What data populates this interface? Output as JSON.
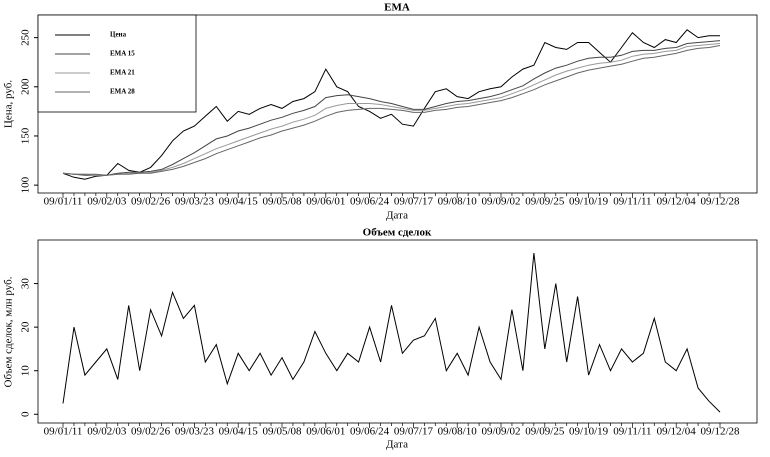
{
  "chart_data": [
    {
      "type": "line",
      "title": "EMA",
      "xlabel": "Дата",
      "ylabel": "Цена, руб.",
      "categories": [
        "09/01/11",
        null,
        null,
        null,
        "09/02/03",
        null,
        null,
        null,
        "09/02/26",
        null,
        null,
        null,
        "09/03/23",
        null,
        null,
        null,
        "09/04/15",
        null,
        null,
        null,
        "09/05/08",
        null,
        null,
        null,
        "09/06/01",
        null,
        null,
        null,
        "09/06/24",
        null,
        null,
        null,
        "09/07/17",
        null,
        null,
        null,
        "09/08/10",
        null,
        null,
        null,
        "09/09/02",
        null,
        null,
        null,
        "09/09/25",
        null,
        null,
        null,
        "09/10/19",
        null,
        null,
        null,
        "09/11/11",
        null,
        null,
        null,
        "09/12/04",
        null,
        null,
        null,
        "09/12/28"
      ],
      "ylim": [
        92,
        273
      ],
      "yticks": [
        100,
        150,
        200,
        250
      ],
      "legend": "upper left",
      "series": [
        {
          "name": "Цена",
          "color": "#000000",
          "values": [
            112,
            108,
            106,
            109,
            110,
            122,
            115,
            113,
            118,
            130,
            145,
            155,
            160,
            170,
            180,
            165,
            175,
            172,
            178,
            182,
            178,
            185,
            188,
            195,
            218,
            200,
            195,
            180,
            175,
            168,
            172,
            162,
            160,
            178,
            195,
            198,
            190,
            188,
            195,
            198,
            200,
            210,
            218,
            222,
            245,
            240,
            238,
            245,
            245,
            235,
            225,
            240,
            255,
            245,
            240,
            248,
            245,
            258,
            250,
            252,
            252
          ]
        },
        {
          "name": "EMA 15",
          "color": "#444444",
          "values": [
            112,
            111,
            110,
            110,
            110,
            112,
            113,
            113,
            114,
            116,
            121,
            127,
            133,
            140,
            147,
            150,
            155,
            158,
            162,
            166,
            169,
            173,
            176,
            180,
            189,
            191,
            192,
            190,
            188,
            185,
            183,
            180,
            177,
            177,
            180,
            183,
            185,
            186,
            188,
            190,
            193,
            197,
            201,
            208,
            214,
            219,
            222,
            226,
            229,
            230,
            230,
            232,
            236,
            237,
            237,
            239,
            240,
            244,
            245,
            246,
            247
          ]
        },
        {
          "name": "EMA 21",
          "color": "#999999",
          "values": [
            112,
            111,
            111,
            110,
            110,
            111,
            112,
            112,
            113,
            115,
            118,
            122,
            127,
            132,
            137,
            141,
            145,
            149,
            153,
            157,
            160,
            164,
            167,
            171,
            178,
            181,
            183,
            183,
            183,
            182,
            180,
            178,
            176,
            176,
            178,
            180,
            182,
            183,
            185,
            187,
            189,
            193,
            197,
            202,
            207,
            212,
            216,
            219,
            222,
            224,
            225,
            227,
            231,
            233,
            234,
            236,
            237,
            241,
            242,
            243,
            244
          ]
        },
        {
          "name": "EMA 28",
          "color": "#666666",
          "values": [
            112,
            111,
            111,
            111,
            110,
            111,
            111,
            112,
            112,
            114,
            116,
            119,
            123,
            127,
            132,
            136,
            140,
            144,
            148,
            151,
            155,
            158,
            161,
            165,
            170,
            174,
            176,
            177,
            178,
            178,
            177,
            176,
            174,
            174,
            176,
            177,
            179,
            180,
            182,
            184,
            186,
            189,
            193,
            197,
            202,
            206,
            210,
            214,
            217,
            219,
            221,
            223,
            226,
            229,
            230,
            232,
            234,
            237,
            239,
            240,
            242
          ]
        }
      ]
    },
    {
      "type": "line",
      "title": "Объем сделок",
      "xlabel": "Дата",
      "ylabel": "Объем сделок, млн руб.",
      "categories": [
        "09/01/11",
        null,
        null,
        null,
        "09/02/03",
        null,
        null,
        null,
        "09/02/26",
        null,
        null,
        null,
        "09/03/23",
        null,
        null,
        null,
        "09/04/15",
        null,
        null,
        null,
        "09/05/08",
        null,
        null,
        null,
        "09/06/01",
        null,
        null,
        null,
        "09/06/24",
        null,
        null,
        null,
        "09/07/17",
        null,
        null,
        null,
        "09/08/10",
        null,
        null,
        null,
        "09/09/02",
        null,
        null,
        null,
        "09/09/25",
        null,
        null,
        null,
        "09/10/19",
        null,
        null,
        null,
        "09/11/11",
        null,
        null,
        null,
        "09/12/04",
        null,
        null,
        null,
        "09/12/28"
      ],
      "ylim": [
        -2,
        40
      ],
      "yticks": [
        0,
        10,
        20,
        30
      ],
      "series": [
        {
          "color": "#000000",
          "values": [
            2.5,
            20,
            9,
            12,
            15,
            8,
            25,
            10,
            24,
            18,
            28,
            22,
            25,
            12,
            16,
            7,
            14,
            10,
            14,
            9,
            13,
            8,
            12,
            19,
            14,
            10,
            14,
            12,
            20,
            12,
            25,
            14,
            17,
            18,
            22,
            10,
            14,
            9,
            20,
            12,
            8,
            24,
            10,
            37,
            15,
            30,
            12,
            27,
            9,
            16,
            10,
            15,
            12,
            14,
            22,
            12,
            10,
            15,
            6,
            3,
            0.5
          ]
        }
      ]
    }
  ]
}
